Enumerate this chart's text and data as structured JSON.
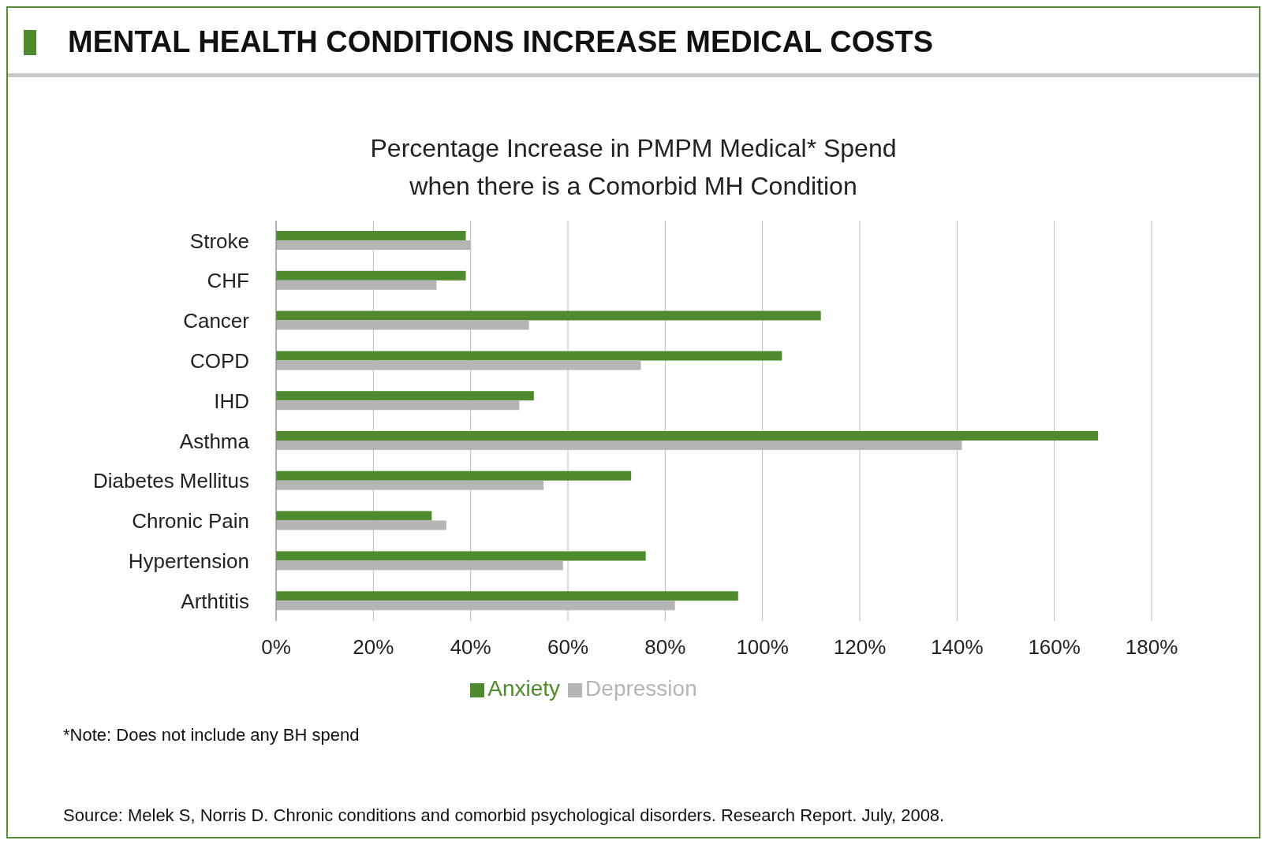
{
  "chart_data": {
    "type": "bar",
    "orientation": "horizontal",
    "title": "MENTAL HEALTH CONDITIONS INCREASE MEDICAL COSTS",
    "subtitle": "Percentage Increase in PMPM Medical* Spend\nwhen there is a Comorbid MH Condition",
    "categories": [
      "Stroke",
      "CHF",
      "Cancer",
      "COPD",
      "IHD",
      "Asthma",
      "Diabetes Mellitus",
      "Chronic Pain",
      "Hypertension",
      "Arthtitis"
    ],
    "series": [
      {
        "name": "Anxiety",
        "color": "#4f8a2e",
        "values": [
          39,
          39,
          112,
          104,
          53,
          169,
          73,
          32,
          76,
          95
        ]
      },
      {
        "name": "Depression",
        "color": "#b5b5b5",
        "values": [
          40,
          33,
          52,
          75,
          50,
          141,
          55,
          35,
          59,
          82
        ]
      }
    ],
    "xlim": [
      0,
      180
    ],
    "xticks": [
      {
        "value": 0,
        "label": "0%"
      },
      {
        "value": 20,
        "label": "20%"
      },
      {
        "value": 40,
        "label": "40%"
      },
      {
        "value": 60,
        "label": "60%"
      },
      {
        "value": 80,
        "label": "80%"
      },
      {
        "value": 100,
        "label": "100%"
      },
      {
        "value": 120,
        "label": "120%"
      },
      {
        "value": 140,
        "label": "140%"
      },
      {
        "value": 160,
        "label": "160%"
      },
      {
        "value": 180,
        "label": "180%"
      }
    ],
    "grid": "x",
    "legend": "bottom",
    "annotations": [
      "*Note: Does not include any BH spend",
      "Source: Melek S, Norris D. Chronic conditions and comorbid psychological disorders. Research Report. July, 2008."
    ]
  }
}
